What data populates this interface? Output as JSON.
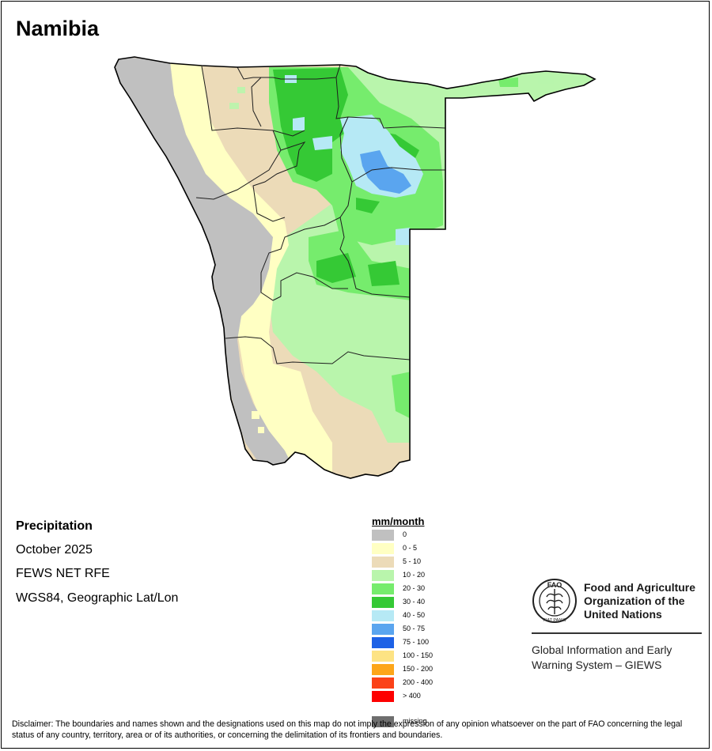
{
  "map": {
    "title": "Namibia",
    "variable": "Precipitation",
    "period": "October 2025",
    "source": "FEWS NET RFE",
    "projection": "WGS84, Geographic Lat/Lon"
  },
  "legend": {
    "title": "mm/month",
    "items": [
      {
        "label": "0",
        "color": "#c0c0c0"
      },
      {
        "label": "0 - 5",
        "color": "#ffffc3"
      },
      {
        "label": "5 - 10",
        "color": "#ecdbb8"
      },
      {
        "label": "10 - 20",
        "color": "#b9f5ac"
      },
      {
        "label": "20 - 30",
        "color": "#76ec6d"
      },
      {
        "label": "30 - 40",
        "color": "#35c935"
      },
      {
        "label": "40 - 50",
        "color": "#b6e9f5"
      },
      {
        "label": "50 - 75",
        "color": "#5aa5ef"
      },
      {
        "label": "75 - 100",
        "color": "#1d61e6"
      },
      {
        "label": "100 - 150",
        "color": "#fde384"
      },
      {
        "label": "150 - 200",
        "color": "#fda619"
      },
      {
        "label": "200 - 400",
        "color": "#fb4218"
      },
      {
        "label": "> 400",
        "color": "#fd0000"
      },
      {
        "label": "missing",
        "color": "#6e6e6e"
      }
    ]
  },
  "organization": {
    "name_line1": "Food and Agriculture",
    "name_line2": "Organization of the",
    "name_line3": "United Nations",
    "system_line1": "Global Information and Early",
    "system_line2": "Warning System – GIEWS",
    "logo_text": "FAO",
    "logo_motto": "FIAT PANIS"
  },
  "disclaimer": "Disclaimer: The boundaries and names shown and the designations used on this map do not imply the expression of any opinion whatsoever on the part of FAO concerning the legal status of any country, territory, area or of its authorities, or concerning the delimitation of its frontiers and boundaries."
}
